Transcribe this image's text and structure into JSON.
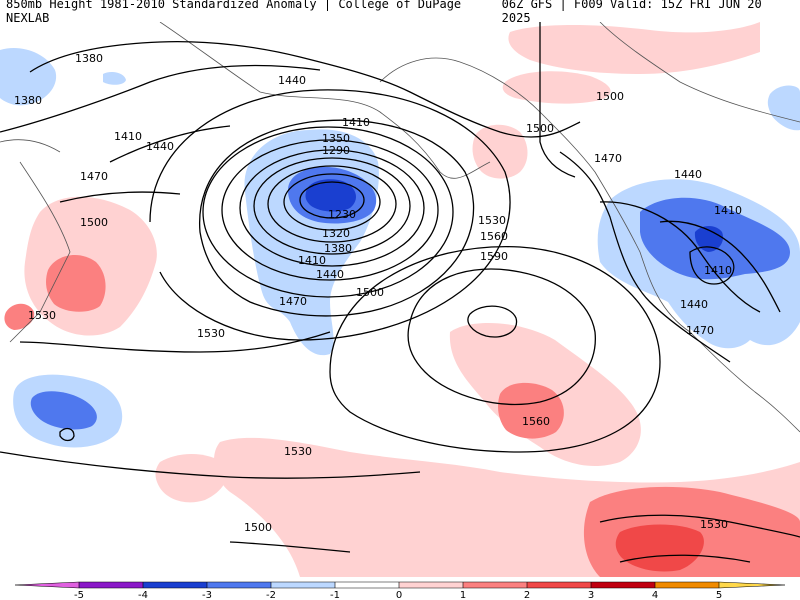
{
  "header": {
    "title": "850mb Height 1981-2010 Standardized Anomaly | College of DuPage NEXLAB",
    "run_info": "06Z GFS | F009 Valid: 15Z FRI JUN 20 2025"
  },
  "colors": {
    "neg5": "#e060e0",
    "neg4": "#8a18c8",
    "neg3": "#1a3fd0",
    "neg2": "#4f78ee",
    "neg1": "#bcd8ff",
    "zero": "#ffffff",
    "pos1": "#ffd2d2",
    "pos2": "#fb8080",
    "pos3": "#f04848",
    "pos4": "#c00010",
    "pos5": "#f08a00",
    "pos6": "#ffd84a"
  },
  "colorbar": {
    "ticks": [
      "-5",
      "-4",
      "-3",
      "-2",
      "-1",
      "0",
      "1",
      "2",
      "3",
      "4",
      "5"
    ]
  },
  "contour_labels": [
    "1380",
    "1380",
    "1440",
    "1410",
    "1440",
    "1470",
    "1410",
    "1350",
    "1290",
    "1230",
    "1320",
    "1380",
    "1410",
    "1440",
    "1470",
    "1500",
    "1500",
    "1530",
    "1530",
    "1560",
    "1590",
    "1530",
    "1560",
    "1530",
    "1500",
    "1500",
    "1500",
    "1470",
    "1440",
    "1410",
    "1410",
    "1440",
    "1470",
    "1530"
  ]
}
